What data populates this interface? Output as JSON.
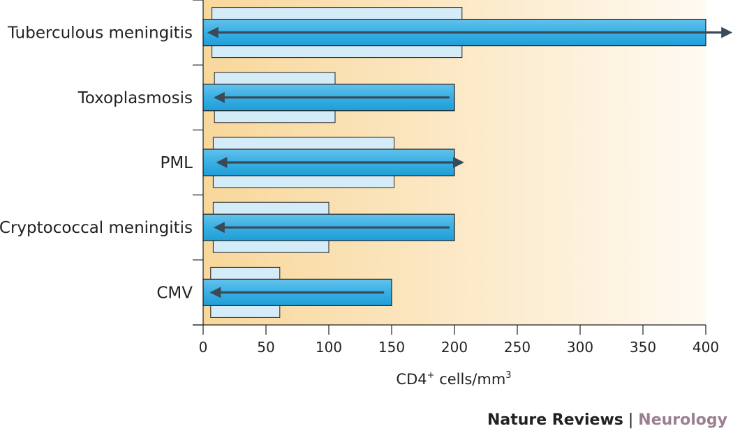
{
  "chart_data": {
    "type": "bar",
    "xlabel_main": "CD4",
    "xlabel_sup1": "+",
    "xlabel_mid": " cells/mm",
    "xlabel_sup2": "3",
    "xlim": [
      0,
      400
    ],
    "xticks": [
      "0",
      "50",
      "100",
      "150",
      "200",
      "250",
      "300",
      "350",
      "400"
    ],
    "grid": false,
    "categories": [
      {
        "label": "Tuberculous meningitis",
        "light_range": [
          7,
          206
        ],
        "dark_range": [
          0,
          400
        ],
        "arrow": {
          "from": 375,
          "to": 5,
          "right_to": 420,
          "both": true
        }
      },
      {
        "label": "Toxoplasmosis",
        "light_range": [
          9,
          105
        ],
        "dark_range": [
          0,
          200
        ],
        "arrow": {
          "from": 196,
          "to": 10,
          "both": false
        }
      },
      {
        "label": "PML",
        "light_range": [
          8,
          152
        ],
        "dark_range": [
          0,
          200
        ],
        "arrow": {
          "from": 12,
          "to": 206,
          "both": true
        }
      },
      {
        "label": "Cryptococcal meningitis",
        "light_range": [
          8,
          100
        ],
        "dark_range": [
          0,
          200
        ],
        "arrow": {
          "from": 196,
          "to": 10,
          "both": false
        }
      },
      {
        "label": "CMV",
        "light_range": [
          6,
          61
        ],
        "dark_range": [
          0,
          150
        ],
        "arrow": {
          "from": 144,
          "to": 7,
          "both": false
        }
      }
    ],
    "colors": {
      "background_start": "#f8d79a",
      "background_end": "#fffaf2",
      "light_bar": "#d4ebf8",
      "dark_bar_top": "#62c2ec",
      "dark_bar_bottom": "#1f9ed8",
      "arrow": "#3b4a59",
      "axis": "#231f20"
    }
  },
  "credit": {
    "publisher": "Nature Reviews",
    "separator": " | ",
    "journal": "Neurology"
  }
}
